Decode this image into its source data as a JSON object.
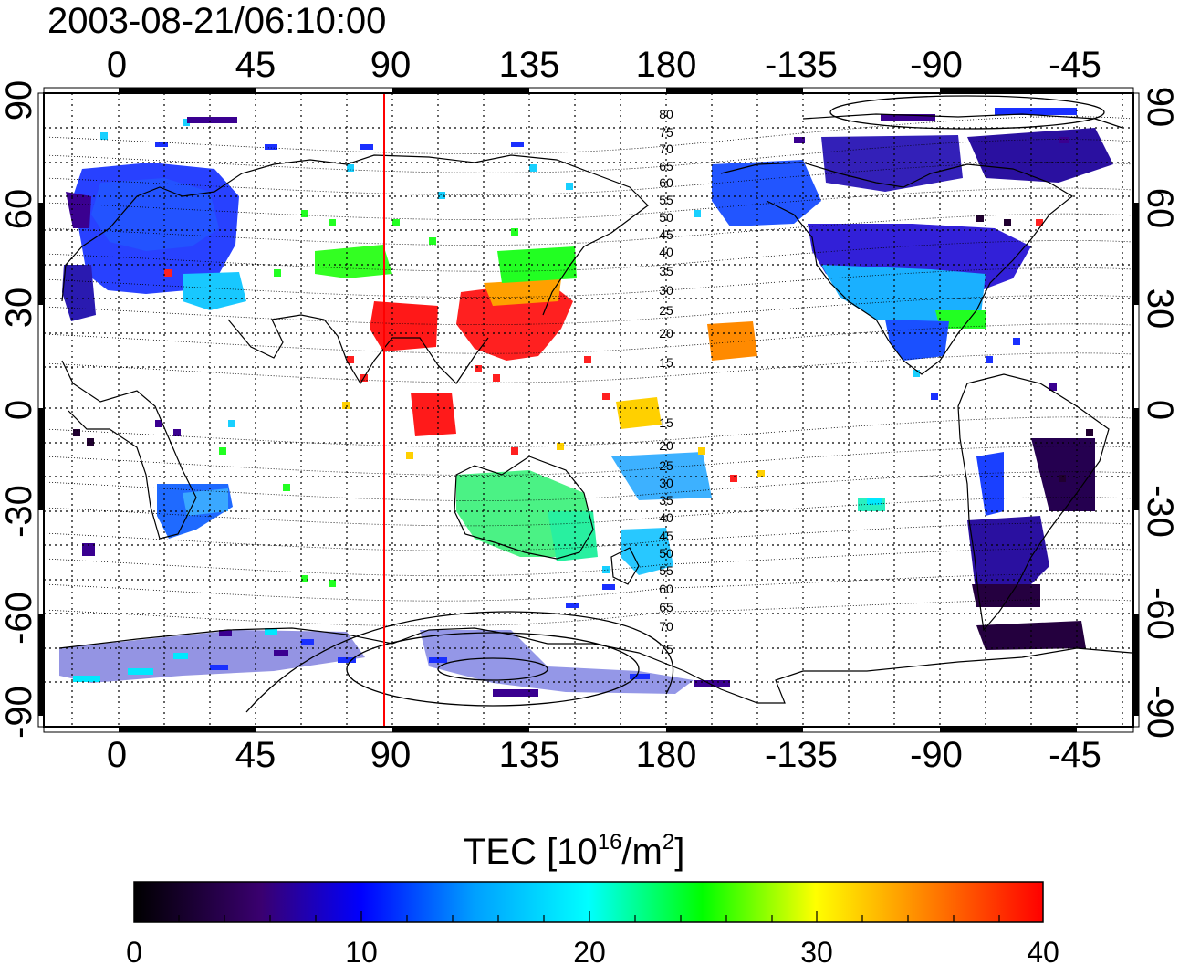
{
  "timestamp": "2003-08-21/06:10:00",
  "map": {
    "top_lon_labels": [
      "0",
      "45",
      "90",
      "135",
      "180",
      "-135",
      "-90",
      "-45"
    ],
    "bottom_lon_labels": [
      "0",
      "45",
      "90",
      "135",
      "180",
      "-135",
      "-90",
      "-45"
    ],
    "left_lat_labels": [
      "90",
      "60",
      "30",
      "0",
      "-30",
      "-60",
      "-90"
    ],
    "right_lat_labels": [
      "90",
      "60",
      "30",
      "0",
      "-30",
      "-60",
      "-90"
    ],
    "contour_labels_north": [
      "80",
      "75",
      "70",
      "65",
      "60",
      "55",
      "50",
      "45",
      "40",
      "35",
      "30",
      "25",
      "20",
      "15"
    ],
    "contour_labels_south": [
      "15",
      "20",
      "25",
      "30",
      "35",
      "40",
      "45",
      "50",
      "55",
      "60",
      "65",
      "70",
      "75"
    ],
    "marker_line_longitude": 88,
    "marker_line_color": "#ff0000"
  },
  "colorbar": {
    "title_prefix": "TEC  [10",
    "title_exp1": "16",
    "title_mid": "/m",
    "title_exp2": "2",
    "title_suffix": "]",
    "ticks": [
      "0",
      "10",
      "20",
      "30",
      "40"
    ],
    "range": [
      0,
      40
    ],
    "colors": [
      "#000000",
      "#3a0070",
      "#0000ff",
      "#00ffff",
      "#00ff00",
      "#ffff00",
      "#ff7f00",
      "#ff0000"
    ]
  }
}
